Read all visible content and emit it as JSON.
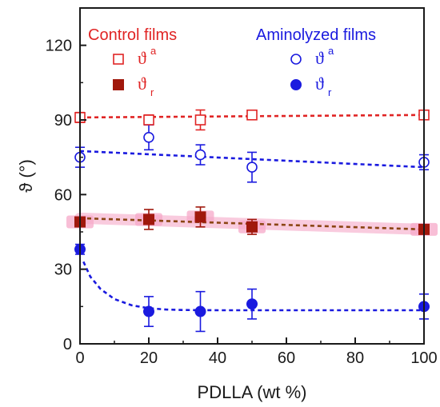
{
  "chart_data": {
    "type": "scatter",
    "title": "",
    "xlabel": "PDLLA (wt %)",
    "ylabel": "ϑ (°)",
    "xlim": [
      0,
      100
    ],
    "ylim": [
      0,
      135
    ],
    "x_ticks": [
      0,
      20,
      40,
      60,
      80,
      100
    ],
    "y_ticks": [
      0,
      30,
      60,
      90,
      120
    ],
    "grid": false,
    "legend": {
      "groups": [
        {
          "heading": "Control films",
          "color": "#e02424",
          "entries": [
            {
              "symbol": "ϑ",
              "subscript": "a",
              "marker": "open-square"
            },
            {
              "symbol": "ϑ",
              "subscript": "r",
              "marker": "filled-square"
            }
          ]
        },
        {
          "heading": "Aminolyzed films",
          "color": "#1a1adf",
          "entries": [
            {
              "symbol": "ϑ",
              "subscript": "a",
              "marker": "open-circle"
            },
            {
              "symbol": "ϑ",
              "subscript": "r",
              "marker": "filled-circle"
            }
          ]
        }
      ]
    },
    "series": [
      {
        "group": "Control films",
        "subscript": "a",
        "marker": "open-square",
        "color": "#e02424",
        "x": [
          0,
          20,
          35,
          50,
          100
        ],
        "y": [
          91,
          90,
          90,
          92,
          92
        ],
        "err": [
          2,
          2,
          4,
          1.5,
          1.5
        ],
        "fit": {
          "type": "linear",
          "x": [
            0,
            100
          ],
          "y": [
            91,
            92
          ],
          "color": "#e02424"
        }
      },
      {
        "group": "Control films",
        "subscript": "r",
        "marker": "filled-square",
        "color": "#a0180c",
        "highlight": "#f5a8c8",
        "x": [
          0,
          20,
          35,
          50,
          100
        ],
        "y": [
          49,
          50,
          51,
          47,
          46
        ],
        "err": [
          1.5,
          4,
          4,
          3,
          1.5
        ],
        "fit": {
          "type": "linear",
          "x": [
            0,
            100
          ],
          "y": [
            50.5,
            46
          ],
          "color": "#8b4513"
        }
      },
      {
        "group": "Aminolyzed films",
        "subscript": "a",
        "marker": "open-circle",
        "color": "#1a1adf",
        "x": [
          0,
          20,
          35,
          50,
          100
        ],
        "y": [
          75,
          83,
          76,
          71,
          73
        ],
        "err": [
          4,
          5,
          4,
          6,
          3
        ],
        "fit": {
          "type": "linear",
          "x": [
            0,
            100
          ],
          "y": [
            77.5,
            71
          ],
          "color": "#1a1adf"
        }
      },
      {
        "group": "Aminolyzed films",
        "subscript": "r",
        "marker": "filled-circle",
        "color": "#1a1adf",
        "x": [
          0,
          20,
          35,
          50,
          100
        ],
        "y": [
          38,
          13,
          13,
          16,
          15
        ],
        "err": [
          2,
          6,
          8,
          6,
          5
        ],
        "fit": {
          "type": "exp-decay",
          "color": "#1a1adf",
          "x": [
            1,
            3,
            6,
            10,
            15,
            20,
            25,
            30,
            40,
            50,
            70,
            100
          ],
          "y": [
            33,
            27,
            22,
            18,
            15.5,
            14.3,
            13.8,
            13.6,
            13.5,
            13.5,
            13.5,
            13.5
          ]
        }
      }
    ]
  }
}
